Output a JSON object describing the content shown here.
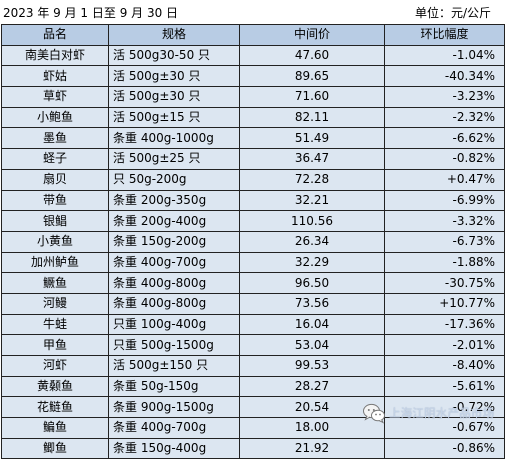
{
  "header": {
    "date_range": "2023 年 9 月 1 日至 9 月 30 日",
    "unit": "单位：元/公斤"
  },
  "table": {
    "columns": [
      "品名",
      "规格",
      "中间价",
      "环比幅度"
    ],
    "rows": [
      {
        "name": "南美白对虾",
        "spec": "活 500g30-50 只",
        "price": "47.60",
        "change": "-1.04%"
      },
      {
        "name": "虾姑",
        "spec": "活 500g±30 只",
        "price": "89.65",
        "change": "-40.34%"
      },
      {
        "name": "草虾",
        "spec": "活 500g±30 只",
        "price": "71.60",
        "change": "-3.23%"
      },
      {
        "name": "小鲍鱼",
        "spec": "活 500g±15 只",
        "price": "82.11",
        "change": "-2.32%"
      },
      {
        "name": "墨鱼",
        "spec": "条重 400g-1000g",
        "price": "51.49",
        "change": "-6.62%"
      },
      {
        "name": "蛏子",
        "spec": "活 500g±25 只",
        "price": "36.47",
        "change": "-0.82%"
      },
      {
        "name": "扇贝",
        "spec": "只 50g-200g",
        "price": "72.28",
        "change": "+0.47%"
      },
      {
        "name": "带鱼",
        "spec": "条重 200g-350g",
        "price": "32.21",
        "change": "-6.99%"
      },
      {
        "name": "银鲳",
        "spec": "条重 200g-400g",
        "price": "110.56",
        "change": "-3.32%"
      },
      {
        "name": "小黄鱼",
        "spec": "条重 150g-200g",
        "price": "26.34",
        "change": "-6.73%"
      },
      {
        "name": "加州鲈鱼",
        "spec": "条重 400g-700g",
        "price": "32.29",
        "change": "-1.88%"
      },
      {
        "name": "鳜鱼",
        "spec": "条重 400g-800g",
        "price": "96.50",
        "change": "-30.75%"
      },
      {
        "name": "河鳗",
        "spec": "条重 400g-800g",
        "price": "73.56",
        "change": "+10.77%"
      },
      {
        "name": "牛蛙",
        "spec": "只重 100g-400g",
        "price": "16.04",
        "change": "-17.36%"
      },
      {
        "name": "甲鱼",
        "spec": "只重 500g-1500g",
        "price": "53.04",
        "change": "-2.01%"
      },
      {
        "name": "河虾",
        "spec": "活 500g±150 只",
        "price": "99.53",
        "change": "-8.40%"
      },
      {
        "name": "黄颡鱼",
        "spec": "条重 50g-150g",
        "price": "28.27",
        "change": "-5.61%"
      },
      {
        "name": "花鲢鱼",
        "spec": "条重 900g-1500g",
        "price": "20.54",
        "change": "-0.72%"
      },
      {
        "name": "鳊鱼",
        "spec": "条重 400g-700g",
        "price": "18.00",
        "change": "-0.67%"
      },
      {
        "name": "鲫鱼",
        "spec": "条重 150g-400g",
        "price": "21.92",
        "change": "-0.86%"
      }
    ]
  },
  "watermark": {
    "text": "上海江阴水产品市场",
    "icon": "wechat-icon"
  },
  "colors": {
    "header_bg": "#b8cce4",
    "cell_bg": "#dce6f1",
    "border": "#222222"
  }
}
